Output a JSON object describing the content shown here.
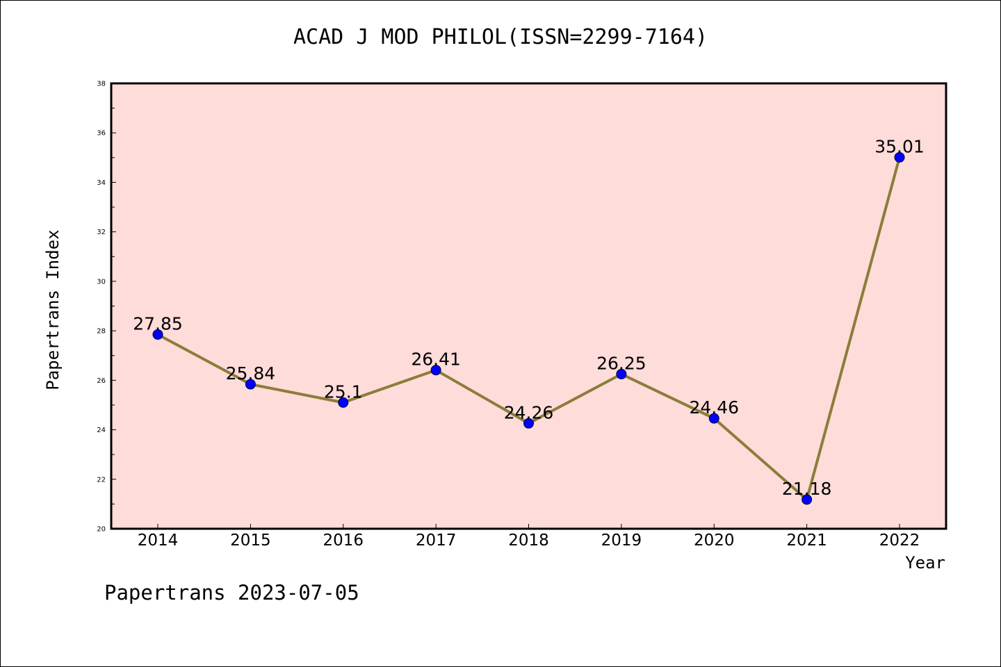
{
  "chart_data": {
    "type": "line",
    "title": "ACAD J MOD PHILOL(ISSN=2299-7164)",
    "xlabel": "Year",
    "ylabel": "Papertrans Index",
    "categories": [
      "2014",
      "2015",
      "2016",
      "2017",
      "2018",
      "2019",
      "2020",
      "2021",
      "2022"
    ],
    "values": [
      27.85,
      25.84,
      25.1,
      26.41,
      24.26,
      26.25,
      24.46,
      21.18,
      35.01
    ],
    "data_labels": [
      "27.85",
      "25.84",
      "25.1",
      "26.41",
      "24.26",
      "26.25",
      "24.46",
      "21.18",
      "35.01"
    ],
    "ylim": [
      20,
      38
    ],
    "yticks": [
      20,
      22,
      24,
      26,
      28,
      30,
      32,
      34,
      36,
      38
    ],
    "grid": false,
    "legend": "none",
    "colors": {
      "plot_background": "#fddcda",
      "line": "#8b7d3a",
      "marker": "#0000ff"
    }
  },
  "footer": "Papertrans 2023-07-05"
}
